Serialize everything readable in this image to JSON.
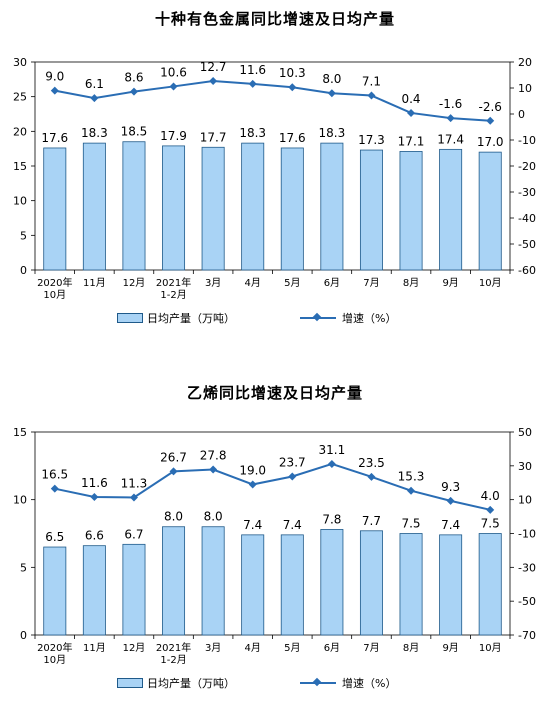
{
  "colors": {
    "bar_fill": "#a9d3f5",
    "bar_stroke": "#1f5a8a",
    "line": "#2a6db4"
  },
  "chart_data": [
    {
      "type": "bar",
      "title": "十种有色金属同比增速及日均产量",
      "categories": [
        "2020年\n10月",
        "11月",
        "12月",
        "2021年\n1-2月",
        "3月",
        "4月",
        "5月",
        "6月",
        "7月",
        "8月",
        "9月",
        "10月"
      ],
      "series": [
        {
          "name": "日均产量（万吨）",
          "type": "bar",
          "axis": "left",
          "values": [
            17.6,
            18.3,
            18.5,
            17.9,
            17.7,
            18.3,
            17.6,
            18.3,
            17.3,
            17.1,
            17.4,
            17.0
          ]
        },
        {
          "name": "增速（%）",
          "type": "line",
          "axis": "right",
          "values": [
            9.0,
            6.1,
            8.6,
            10.6,
            12.7,
            11.6,
            10.3,
            8.0,
            7.1,
            0.4,
            -1.6,
            -2.6
          ]
        }
      ],
      "y_left": {
        "min": 0,
        "max": 30,
        "ticks": [
          0,
          5,
          10,
          15,
          20,
          25,
          30
        ]
      },
      "y_right": {
        "min": -60,
        "max": 20,
        "ticks": [
          -60,
          -50,
          -40,
          -30,
          -20,
          -10,
          0,
          10,
          20
        ]
      },
      "legend_position": "bottom"
    },
    {
      "type": "bar",
      "title": "乙烯同比增速及日均产量",
      "categories": [
        "2020年\n10月",
        "11月",
        "12月",
        "2021年\n1-2月",
        "3月",
        "4月",
        "5月",
        "6月",
        "7月",
        "8月",
        "9月",
        "10月"
      ],
      "series": [
        {
          "name": "日均产量（万吨）",
          "type": "bar",
          "axis": "left",
          "values": [
            6.5,
            6.6,
            6.7,
            8.0,
            8.0,
            7.4,
            7.4,
            7.8,
            7.7,
            7.5,
            7.4,
            7.5
          ]
        },
        {
          "name": "增速（%）",
          "type": "line",
          "axis": "right",
          "values": [
            16.5,
            11.6,
            11.3,
            26.7,
            27.8,
            19.0,
            23.7,
            31.1,
            23.5,
            15.3,
            9.3,
            4.0
          ]
        }
      ],
      "y_left": {
        "min": 0,
        "max": 15,
        "ticks": [
          0,
          5,
          10,
          15
        ]
      },
      "y_right": {
        "min": -70,
        "max": 50,
        "ticks": [
          -70,
          -50,
          -30,
          -10,
          10,
          30,
          50
        ]
      },
      "legend_position": "bottom"
    }
  ]
}
